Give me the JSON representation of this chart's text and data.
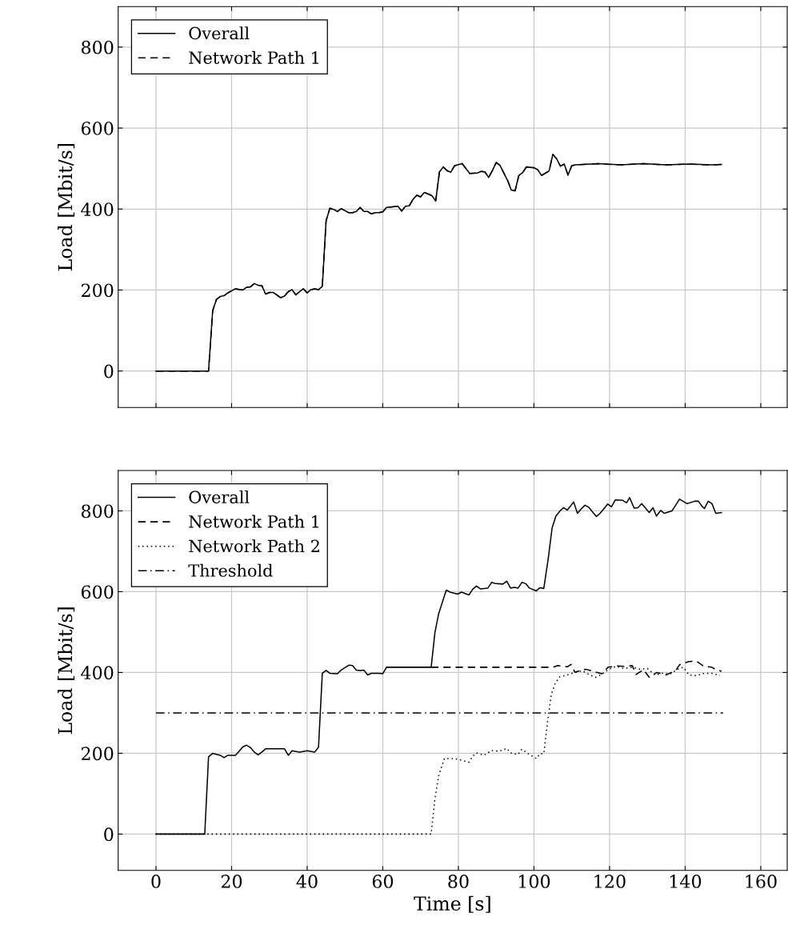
{
  "chart_data": [
    {
      "type": "line",
      "ylabel": "Load [Mbit/s]",
      "xlim": [
        -10,
        167
      ],
      "ylim": [
        -90,
        900
      ],
      "xticks": [
        0,
        20,
        40,
        60,
        80,
        100,
        120,
        140,
        160
      ],
      "yticks": [
        0,
        200,
        400,
        600,
        800
      ],
      "grid": true,
      "legend": "top left",
      "tick_labels": "y",
      "marker": "none",
      "series": [
        {
          "name": "Overall",
          "color": "#000000",
          "line_style": "solid",
          "x": [
            0,
            13.9,
            15,
            16,
            17,
            18,
            19,
            21,
            23,
            24,
            25,
            26,
            27,
            28,
            29,
            30,
            31,
            33,
            34,
            35,
            36,
            37,
            38,
            39,
            40,
            41,
            42,
            43,
            44,
            45,
            46,
            47,
            48,
            49,
            50,
            51,
            52,
            53,
            54,
            55,
            56,
            57,
            58,
            59,
            60,
            61,
            64,
            65,
            66,
            67,
            68,
            69,
            70,
            71,
            72,
            73,
            74,
            75,
            76,
            77,
            78,
            79,
            81,
            83,
            85,
            86,
            87,
            88,
            89,
            90,
            91,
            93,
            94,
            95,
            96,
            97,
            98,
            100,
            101,
            102,
            104,
            105,
            106,
            107,
            108,
            109,
            110,
            111,
            117,
            123,
            129,
            135,
            141,
            147,
            149.6
          ],
          "values": [
            0,
            0,
            149,
            177,
            184,
            186,
            193,
            203,
            200,
            207,
            208,
            216,
            212,
            211,
            190,
            194,
            194,
            181,
            185,
            196,
            201,
            188,
            196,
            203,
            193,
            201,
            203,
            201,
            209,
            371,
            402,
            399,
            394,
            401,
            396,
            391,
            391,
            394,
            404,
            394,
            394,
            388,
            391,
            391,
            393,
            404,
            407,
            395,
            407,
            408,
            424,
            434,
            430,
            441,
            437,
            433,
            420,
            492,
            504,
            495,
            491,
            507,
            512,
            488,
            489,
            493,
            492,
            478,
            495,
            515,
            508,
            471,
            447,
            445,
            483,
            490,
            504,
            502,
            497,
            483,
            494,
            535,
            524,
            506,
            511,
            484,
            507,
            509,
            512,
            509,
            512,
            509,
            511,
            509,
            510
          ]
        },
        {
          "name": "Network Path 1",
          "color": "#000000",
          "line_style": "dashed",
          "x": [
            0,
            13.9,
            15,
            16,
            17,
            18,
            19,
            21,
            23,
            24,
            25,
            26,
            27,
            28,
            29,
            30,
            31,
            33,
            34,
            35,
            36,
            37,
            38,
            39,
            40,
            41,
            42,
            43,
            44,
            45,
            46,
            47,
            48,
            49,
            50,
            51,
            52,
            53,
            54,
            55,
            56,
            57,
            58,
            59,
            60,
            61,
            64,
            65,
            66,
            67,
            68,
            69,
            70,
            71,
            72,
            73,
            74,
            75,
            76,
            77,
            78,
            79,
            81,
            83,
            85,
            86,
            87,
            88,
            89,
            90,
            91,
            93,
            94,
            95,
            96,
            97,
            98,
            100,
            101,
            102,
            104,
            105,
            106,
            107,
            108,
            109,
            110,
            111,
            117,
            123,
            129,
            135,
            141,
            147,
            149.6
          ],
          "values": [
            0,
            0,
            149,
            177,
            184,
            186,
            193,
            203,
            200,
            207,
            208,
            216,
            212,
            211,
            190,
            194,
            194,
            181,
            185,
            196,
            201,
            188,
            196,
            203,
            193,
            201,
            203,
            201,
            209,
            371,
            402,
            399,
            394,
            401,
            396,
            391,
            391,
            394,
            404,
            394,
            394,
            388,
            391,
            391,
            393,
            404,
            407,
            395,
            407,
            408,
            424,
            434,
            430,
            441,
            437,
            433,
            420,
            492,
            504,
            495,
            491,
            507,
            512,
            488,
            489,
            493,
            492,
            478,
            495,
            515,
            508,
            471,
            447,
            445,
            483,
            490,
            504,
            502,
            497,
            483,
            494,
            535,
            524,
            506,
            511,
            484,
            507,
            509,
            512,
            509,
            512,
            509,
            511,
            509,
            510
          ]
        }
      ]
    },
    {
      "type": "line",
      "xlabel": "Time [s]",
      "ylabel": "Load [Mbit/s]",
      "xlim": [
        -10,
        167
      ],
      "ylim": [
        -90,
        900
      ],
      "xticks": [
        0,
        20,
        40,
        60,
        80,
        100,
        120,
        140,
        160
      ],
      "yticks": [
        0,
        200,
        400,
        600,
        800
      ],
      "grid": true,
      "legend": "top left",
      "marker": "none",
      "series": [
        {
          "name": "Overall",
          "color": "#000000",
          "line_style": "solid",
          "x": [
            0,
            12.9,
            13.9,
            15,
            17,
            18,
            19,
            21,
            22,
            23,
            24,
            25,
            26,
            27,
            28,
            29,
            34,
            35,
            36,
            38,
            40,
            42,
            43,
            44,
            45,
            46,
            48,
            49,
            51,
            52,
            53,
            54,
            55,
            56,
            57,
            59,
            60,
            61,
            72.8,
            73.8,
            74.8,
            76.8,
            77.8,
            79.8,
            80.8,
            82.8,
            83.8,
            84.8,
            85.8,
            87.8,
            88.8,
            89.8,
            91.8,
            92.8,
            93.8,
            94.8,
            95.8,
            96.8,
            97.8,
            98.8,
            100.6,
            101.6,
            102.6,
            103.8,
            104.8,
            105.8,
            106.8,
            107.8,
            108.8,
            110.5,
            111.5,
            112.5,
            113.5,
            114.5,
            116.5,
            117.5,
            119.5,
            120.5,
            121.5,
            123.5,
            124.5,
            125.3,
            126.5,
            127.5,
            128.5,
            130.5,
            131.5,
            132.4,
            133.5,
            134.5,
            136.5,
            137.5,
            138.5,
            140.5,
            142.5,
            143.5,
            144.5,
            145.1,
            146.1,
            147.1,
            148.1,
            149.6
          ],
          "values": [
            0,
            0,
            191,
            200,
            195,
            189,
            195,
            195,
            205,
            216,
            220,
            214,
            203,
            196,
            203,
            211,
            211,
            195,
            206,
            203,
            206,
            203,
            215,
            398,
            405,
            398,
            397,
            406,
            418,
            417,
            406,
            405,
            406,
            394,
            398,
            398,
            397,
            413,
            413,
            499,
            546,
            604,
            599,
            594,
            599,
            592,
            606,
            614,
            607,
            609,
            623,
            620,
            619,
            626,
            609,
            611,
            609,
            623,
            620,
            609,
            602,
            610,
            608,
            684,
            758,
            787,
            799,
            808,
            802,
            822,
            794,
            805,
            814,
            809,
            786,
            794,
            817,
            810,
            827,
            826,
            820,
            833,
            807,
            808,
            818,
            796,
            808,
            787,
            801,
            794,
            800,
            814,
            829,
            818,
            824,
            824,
            811,
            806,
            824,
            818,
            794,
            796
          ]
        },
        {
          "name": "Network Path 1",
          "color": "#000000",
          "line_style": "dashed",
          "x": [
            72.8,
            105,
            106.3,
            108.8,
            109.8,
            110.8,
            113.8,
            115.8,
            118,
            119.6,
            122,
            124,
            126,
            127,
            129,
            130.5,
            132.5,
            135,
            137.5,
            138.5,
            141,
            143,
            145,
            147,
            148,
            149.6
          ],
          "values": [
            413,
            413,
            417,
            414,
            420,
            401,
            408,
            402,
            397,
            413,
            416,
            415,
            417,
            395,
            407,
            388,
            400,
            394,
            405,
            419,
            427,
            428,
            415,
            413,
            408,
            403
          ]
        },
        {
          "name": "Network Path 2",
          "color": "#000000",
          "line_style": "dotted",
          "x": [
            0,
            72.8,
            73.8,
            74.8,
            76.3,
            78.8,
            80.8,
            82.8,
            83.8,
            84.8,
            86.8,
            88.8,
            90.8,
            92.8,
            93.8,
            95.8,
            96.8,
            98.8,
            100.6,
            101.6,
            102.6,
            103.6,
            104.6,
            105.6,
            106.8,
            108.8,
            110.8,
            112.8,
            114.8,
            116.3,
            118,
            119.6,
            121.6,
            124,
            126,
            128,
            130,
            132,
            134,
            136,
            138,
            139.5,
            141,
            143,
            145,
            147,
            149.2
          ],
          "values": [
            0,
            0,
            88,
            145,
            187,
            187,
            183,
            178,
            193,
            201,
            195,
            207,
            205,
            212,
            201,
            197,
            210,
            197,
            187,
            199,
            199,
            279,
            346,
            373,
            389,
            394,
            400,
            404,
            394,
            388,
            396,
            407,
            415,
            410,
            413,
            408,
            410,
            394,
            398,
            396,
            408,
            413,
            394,
            392,
            398,
            398,
            392
          ]
        },
        {
          "name": "Threshold",
          "color": "#000000",
          "line_style": "dashdot",
          "x": [
            0,
            150
          ],
          "values": [
            300,
            300
          ]
        }
      ]
    }
  ]
}
